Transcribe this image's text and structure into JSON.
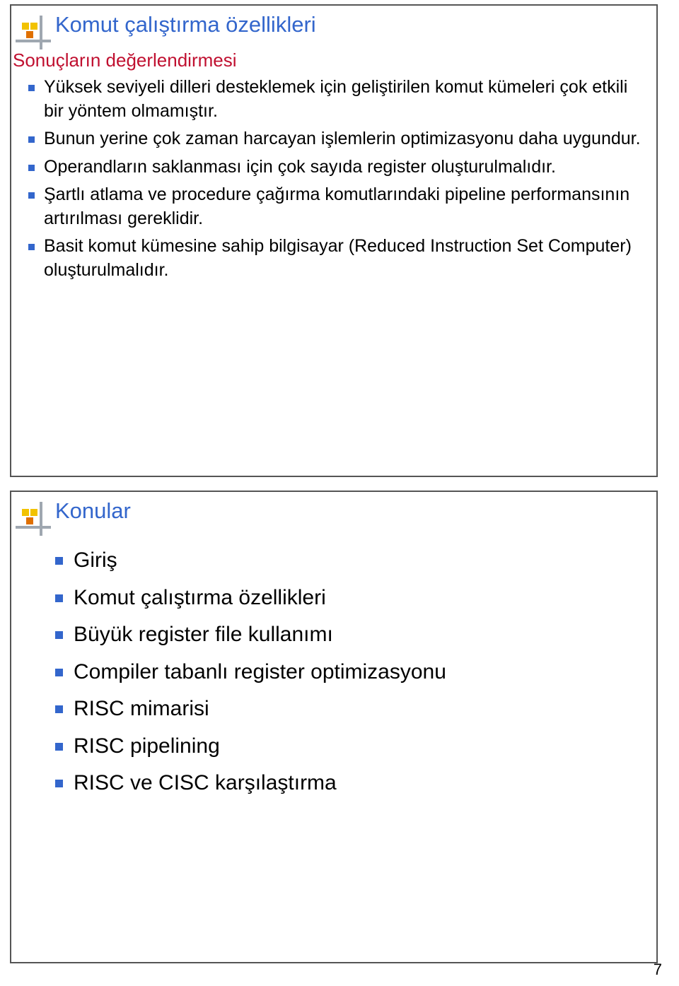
{
  "slide1": {
    "title": "Komut çalıştırma özellikleri",
    "subhead": "Sonuçların değerlendirmesi",
    "bullets": [
      "Yüksek seviyeli dilleri desteklemek için geliştirilen komut kümeleri çok etkili bir yöntem olmamıştır.",
      "Bunun yerine çok zaman harcayan işlemlerin optimizasyonu daha uygundur.",
      "Operandların saklanması için çok sayıda register oluşturulmalıdır.",
      "Şartlı atlama ve procedure çağırma komutlarındaki pipeline performansının artırılması gereklidir.",
      "Basit komut kümesine sahip bilgisayar (Reduced Instruction Set Computer) oluşturulmalıdır."
    ]
  },
  "slide2": {
    "title": "Konular",
    "bullets": [
      "Giriş",
      "Komut çalıştırma özellikleri",
      "Büyük register file kullanımı",
      "Compiler tabanlı register optimizasyonu",
      "RISC mimarisi",
      "RISC pipelining",
      "RISC ve CISC karşılaştırma"
    ]
  },
  "page_number": "7",
  "colors": {
    "title": "#3366cc",
    "subhead": "#c01030",
    "bullet": "#3366cc",
    "border": "#555555",
    "icon_line": "#9fa7b0",
    "icon_yellow": "#f2c200",
    "icon_orange": "#e07000",
    "text": "#000000",
    "background": "#ffffff"
  }
}
